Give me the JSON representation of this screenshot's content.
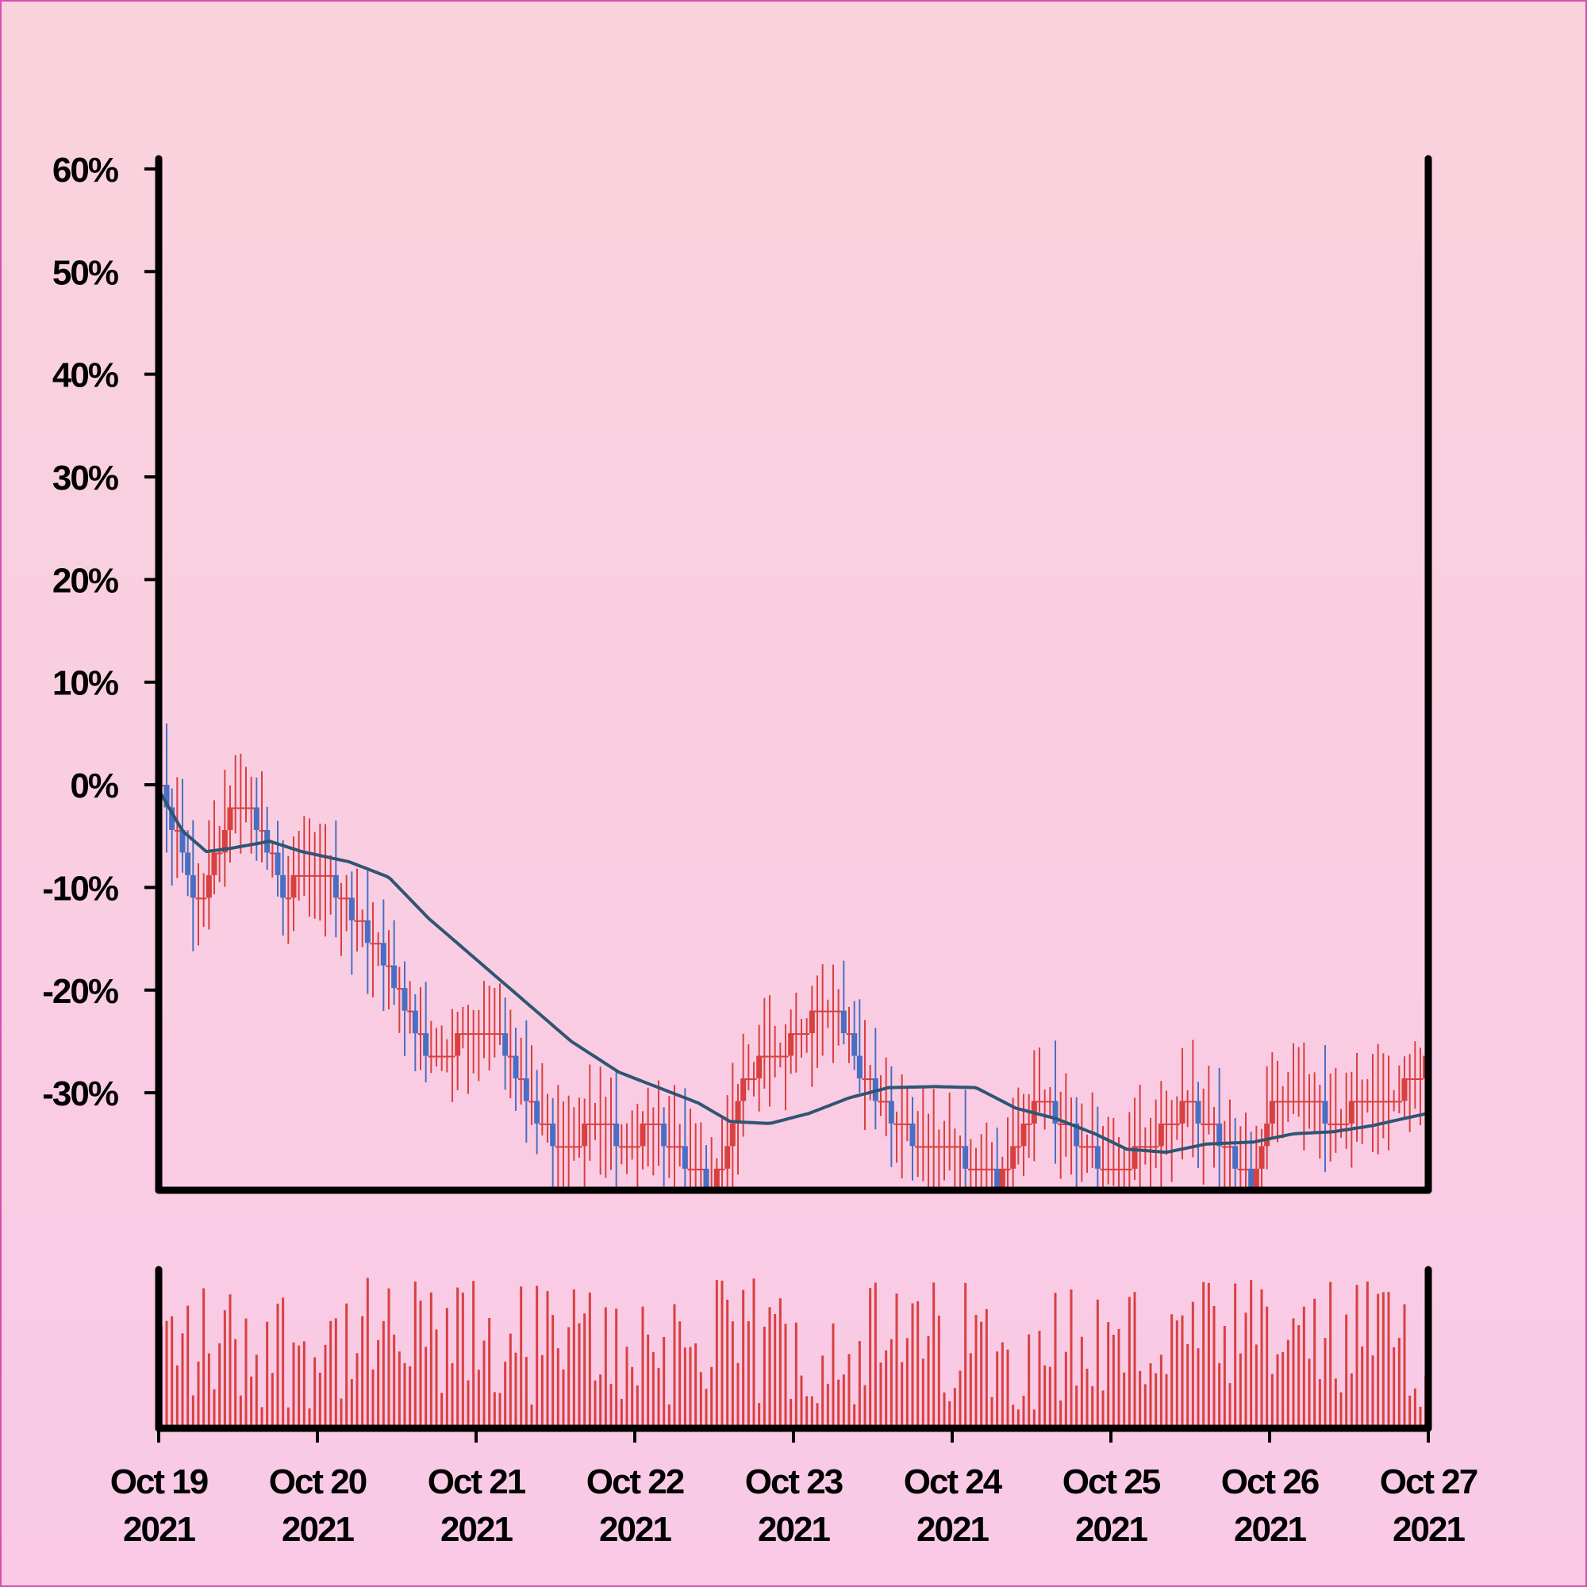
{
  "colors": {
    "up": "#d94040",
    "down": "#4a6fc2",
    "moving_average": "#2f5573",
    "volume": "#d94040",
    "axis": "#000000"
  },
  "chart_data": {
    "type": "candlestick",
    "title": "",
    "xlabel": "",
    "ylabel": "",
    "y_tick_labels": [
      "60%",
      "50%",
      "40%",
      "30%",
      "20%",
      "10%",
      "0%",
      "-10%",
      "-20%",
      "-30%"
    ],
    "y_ticks": [
      60,
      50,
      40,
      30,
      20,
      10,
      0,
      -10,
      -20,
      -30
    ],
    "ylim": [
      -39.5,
      61
    ],
    "x_tick_labels": [
      {
        "line1": "Oct 19",
        "line2": "2021"
      },
      {
        "line1": "Oct 20",
        "line2": "2021"
      },
      {
        "line1": "Oct 21",
        "line2": "2021"
      },
      {
        "line1": "Oct 22",
        "line2": "2021"
      },
      {
        "line1": "Oct 23",
        "line2": "2021"
      },
      {
        "line1": "Oct 24",
        "line2": "2021"
      },
      {
        "line1": "Oct 25",
        "line2": "2021"
      },
      {
        "line1": "Oct 26",
        "line2": "2021"
      },
      {
        "line1": "Oct 27",
        "line2": "2021"
      }
    ],
    "xlim_days": [
      19,
      27
    ],
    "series_close_keypoints": [
      [
        19.0,
        0
      ],
      [
        19.1,
        -4
      ],
      [
        19.2,
        -9
      ],
      [
        19.25,
        -12
      ],
      [
        19.32,
        -8
      ],
      [
        19.48,
        -2
      ],
      [
        19.65,
        -4
      ],
      [
        19.78,
        -11
      ],
      [
        19.95,
        -8
      ],
      [
        20.05,
        -9
      ],
      [
        20.2,
        -12
      ],
      [
        20.35,
        -15
      ],
      [
        20.5,
        -20
      ],
      [
        20.7,
        -26
      ],
      [
        20.95,
        -25
      ],
      [
        21.1,
        -24
      ],
      [
        21.22,
        -27
      ],
      [
        21.4,
        -33
      ],
      [
        21.55,
        -36
      ],
      [
        21.75,
        -33
      ],
      [
        21.95,
        -35
      ],
      [
        22.1,
        -33
      ],
      [
        22.25,
        -35
      ],
      [
        22.45,
        -39
      ],
      [
        22.55,
        -38
      ],
      [
        22.7,
        -28
      ],
      [
        22.85,
        -27
      ],
      [
        23.05,
        -24
      ],
      [
        23.25,
        -21
      ],
      [
        23.45,
        -29
      ],
      [
        23.65,
        -33
      ],
      [
        23.85,
        -36
      ],
      [
        24.05,
        -36
      ],
      [
        24.3,
        -39
      ],
      [
        24.55,
        -30
      ],
      [
        24.75,
        -34
      ],
      [
        24.95,
        -37
      ],
      [
        25.1,
        -37
      ],
      [
        25.3,
        -34
      ],
      [
        25.5,
        -31
      ],
      [
        25.7,
        -35
      ],
      [
        25.9,
        -39
      ],
      [
        26.0,
        -31
      ],
      [
        26.2,
        -30
      ],
      [
        26.4,
        -33
      ],
      [
        26.6,
        -31
      ],
      [
        26.8,
        -30
      ],
      [
        26.95,
        -28
      ],
      [
        27.0,
        -26
      ]
    ],
    "moving_average_keypoints": [
      [
        19.0,
        -0.5
      ],
      [
        19.15,
        -4.5
      ],
      [
        19.3,
        -6.5
      ],
      [
        19.45,
        -6.2
      ],
      [
        19.7,
        -5.5
      ],
      [
        19.9,
        -6.5
      ],
      [
        20.2,
        -7.5
      ],
      [
        20.45,
        -9.0
      ],
      [
        20.7,
        -13.0
      ],
      [
        21.0,
        -17.0
      ],
      [
        21.3,
        -21.0
      ],
      [
        21.6,
        -25.0
      ],
      [
        21.9,
        -28.0
      ],
      [
        22.15,
        -29.5
      ],
      [
        22.4,
        -31.0
      ],
      [
        22.6,
        -32.8
      ],
      [
        22.85,
        -33.0
      ],
      [
        23.1,
        -32.0
      ],
      [
        23.35,
        -30.5
      ],
      [
        23.6,
        -29.5
      ],
      [
        23.9,
        -29.4
      ],
      [
        24.15,
        -29.5
      ],
      [
        24.4,
        -31.5
      ],
      [
        24.65,
        -32.5
      ],
      [
        24.9,
        -34.0
      ],
      [
        25.1,
        -35.5
      ],
      [
        25.35,
        -35.8
      ],
      [
        25.6,
        -35.0
      ],
      [
        25.9,
        -34.8
      ],
      [
        26.15,
        -34.0
      ],
      [
        26.4,
        -33.8
      ],
      [
        26.65,
        -33.2
      ],
      [
        26.85,
        -32.5
      ],
      [
        27.0,
        -32.0
      ]
    ],
    "volume_note": "relative volume bars, one per candle, all in up color",
    "legend": "none",
    "grid": false
  }
}
